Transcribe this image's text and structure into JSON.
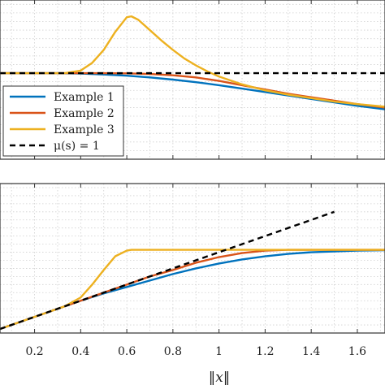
{
  "chart_data": [
    {
      "type": "line",
      "panel": "top",
      "xlim": [
        0.05,
        1.72
      ],
      "ylim": [
        0.0,
        1.85
      ],
      "grid": true,
      "legend_position": "bottom-left",
      "series": [
        {
          "name": "Example 1",
          "color": "#0072BD",
          "x": [
            0.05,
            0.3,
            0.4,
            0.5,
            0.6,
            0.7,
            0.8,
            0.9,
            1.0,
            1.1,
            1.2,
            1.3,
            1.4,
            1.5,
            1.6,
            1.72
          ],
          "y": [
            1.0,
            1.0,
            0.995,
            0.985,
            0.97,
            0.95,
            0.925,
            0.895,
            0.86,
            0.82,
            0.78,
            0.74,
            0.7,
            0.66,
            0.62,
            0.58
          ]
        },
        {
          "name": "Example 2",
          "color": "#D95319",
          "x": [
            0.05,
            0.5,
            0.6,
            0.7,
            0.8,
            0.9,
            1.0,
            1.1,
            1.2,
            1.3,
            1.4,
            1.5,
            1.6,
            1.72
          ],
          "y": [
            1.0,
            1.0,
            0.998,
            0.99,
            0.975,
            0.95,
            0.91,
            0.86,
            0.81,
            0.76,
            0.72,
            0.68,
            0.64,
            0.6
          ]
        },
        {
          "name": "Example 3",
          "color": "#EDB120",
          "x": [
            0.05,
            0.33,
            0.4,
            0.45,
            0.5,
            0.55,
            0.6,
            0.62,
            0.65,
            0.7,
            0.75,
            0.8,
            0.85,
            0.9,
            0.95,
            1.0,
            1.1,
            1.2,
            1.3,
            1.4,
            1.5,
            1.6,
            1.72
          ],
          "y": [
            1.0,
            1.0,
            1.03,
            1.12,
            1.27,
            1.48,
            1.65,
            1.66,
            1.62,
            1.5,
            1.38,
            1.27,
            1.17,
            1.09,
            1.02,
            0.96,
            0.87,
            0.8,
            0.75,
            0.71,
            0.67,
            0.64,
            0.61
          ]
        },
        {
          "name": "μ(s) = 1",
          "color": "#000000",
          "dashed": true,
          "x": [
            0.05,
            1.72
          ],
          "y": [
            1.0,
            1.0
          ]
        }
      ]
    },
    {
      "type": "line",
      "panel": "bottom",
      "xlim": [
        0.05,
        1.72
      ],
      "ylim": [
        0.0,
        1.85
      ],
      "grid": true,
      "series": [
        {
          "name": "Example 1",
          "color": "#0072BD",
          "x": [
            0.05,
            0.3,
            0.4,
            0.5,
            0.6,
            0.7,
            0.8,
            0.9,
            1.0,
            1.1,
            1.2,
            1.3,
            1.4,
            1.5,
            1.6,
            1.72
          ],
          "y": [
            0.05,
            0.3,
            0.4,
            0.49,
            0.57,
            0.65,
            0.73,
            0.8,
            0.86,
            0.91,
            0.95,
            0.98,
            1.0,
            1.01,
            1.02,
            1.025
          ]
        },
        {
          "name": "Example 2",
          "color": "#D95319",
          "x": [
            0.05,
            0.5,
            0.6,
            0.7,
            0.8,
            0.9,
            1.0,
            1.1,
            1.2,
            1.3,
            1.4,
            1.5,
            1.72
          ],
          "y": [
            0.05,
            0.5,
            0.6,
            0.7,
            0.78,
            0.87,
            0.94,
            0.99,
            1.02,
            1.03,
            1.03,
            1.03,
            1.03
          ]
        },
        {
          "name": "Example 3",
          "color": "#EDB120",
          "x": [
            0.05,
            0.33,
            0.4,
            0.45,
            0.5,
            0.55,
            0.6,
            0.62,
            0.7,
            0.8,
            1.0,
            1.2,
            1.4,
            1.6,
            1.72
          ],
          "y": [
            0.05,
            0.33,
            0.44,
            0.6,
            0.78,
            0.95,
            1.02,
            1.03,
            1.03,
            1.03,
            1.03,
            1.03,
            1.03,
            1.03,
            1.03
          ]
        },
        {
          "name": "μ(s) = 1",
          "color": "#000000",
          "dashed": true,
          "x": [
            0.05,
            1.5
          ],
          "y": [
            0.05,
            1.5
          ]
        }
      ]
    }
  ],
  "x_ticks": [
    "0.2",
    "0.4",
    "0.6",
    "0.8",
    "1",
    "1.2",
    "1.4",
    "1.6"
  ],
  "x_tick_values": [
    0.2,
    0.4,
    0.6,
    0.8,
    1.0,
    1.2,
    1.4,
    1.6
  ],
  "xlabel": "‖x‖",
  "legend": {
    "items": [
      {
        "label": "Example 1",
        "color": "#0072BD",
        "dashed": false
      },
      {
        "label": "Example 2",
        "color": "#D95319",
        "dashed": false
      },
      {
        "label": "Example 3",
        "color": "#EDB120",
        "dashed": false
      },
      {
        "label": "μ(s) = 1",
        "color": "#000000",
        "dashed": true
      }
    ]
  }
}
